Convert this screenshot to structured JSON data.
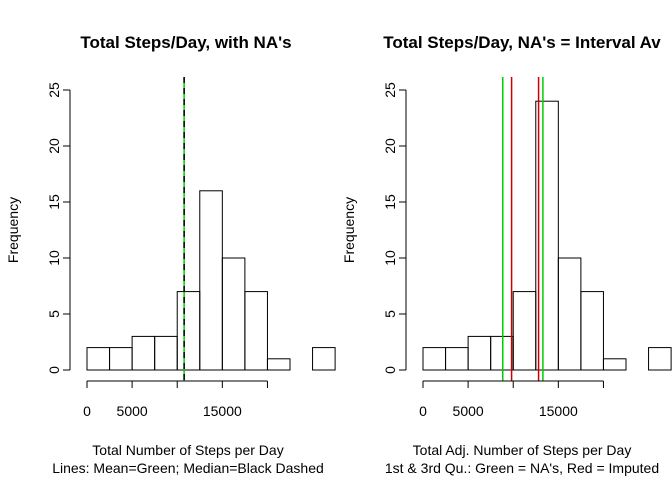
{
  "chart_data": [
    {
      "type": "bar",
      "title": "Total Steps/Day, with NA's",
      "xlabel": "Total Number of Steps per Day",
      "xlabel2": "Lines:  Mean=Green;  Median=Black Dashed",
      "ylabel": "Frequency",
      "bin_width": 2500,
      "bin_start": 0,
      "values": [
        2,
        2,
        3,
        3,
        7,
        16,
        10,
        7,
        1,
        0,
        2
      ],
      "xlim": [
        0,
        22500
      ],
      "ylim": [
        0,
        25
      ],
      "x_ticks": [
        0,
        5000,
        10000,
        15000,
        20000
      ],
      "x_tick_labels": [
        "0",
        "5000",
        "",
        "15000",
        ""
      ],
      "y_ticks": [
        0,
        5,
        10,
        15,
        20,
        25
      ],
      "y_tick_labels": [
        "0",
        "5",
        "10",
        "15",
        "20",
        "25"
      ],
      "vlines": [
        {
          "x": 10766,
          "color": "#00cc00",
          "dash": false
        },
        {
          "x": 10765,
          "color": "#000000",
          "dash": true
        }
      ],
      "grid": false
    },
    {
      "type": "bar",
      "title": "Total Steps/Day, NA's = Interval Av",
      "xlabel": "Total Adj. Number of Steps per Day",
      "xlabel2": "1st & 3rd Qu.: Green = NA's, Red = Imputed",
      "ylabel": "Frequency",
      "bin_width": 2500,
      "bin_start": 0,
      "values": [
        2,
        2,
        3,
        3,
        7,
        24,
        10,
        7,
        1,
        0,
        2
      ],
      "xlim": [
        0,
        22500
      ],
      "ylim": [
        0,
        25
      ],
      "x_ticks": [
        0,
        5000,
        10000,
        15000,
        20000
      ],
      "x_tick_labels": [
        "0",
        "5000",
        "",
        "15000",
        ""
      ],
      "y_ticks": [
        0,
        5,
        10,
        15,
        20,
        25
      ],
      "y_tick_labels": [
        "0",
        "5",
        "10",
        "15",
        "20",
        "25"
      ],
      "vlines": [
        {
          "x": 8840,
          "color": "#00cc00",
          "dash": false
        },
        {
          "x": 13290,
          "color": "#00cc00",
          "dash": false
        },
        {
          "x": 9820,
          "color": "#cc0000",
          "dash": false
        },
        {
          "x": 12810,
          "color": "#cc0000",
          "dash": false
        }
      ],
      "grid": false
    }
  ]
}
